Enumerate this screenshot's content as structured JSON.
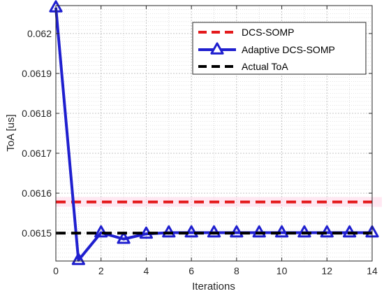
{
  "chart_data": {
    "type": "line",
    "xlabel": "Iterations",
    "ylabel": "ToA [us]",
    "xlim": [
      0,
      14
    ],
    "ylim": [
      0.06143,
      0.06207
    ],
    "grid": true,
    "legend_position": "top-right",
    "x_ticks": [
      0,
      2,
      4,
      6,
      8,
      10,
      12,
      14
    ],
    "y_ticks": [
      0.0615,
      0.0616,
      0.0617,
      0.0618,
      0.0619,
      0.062
    ],
    "y_tick_labels": [
      "0.0615",
      "0.0616",
      "0.0617",
      "0.0618",
      "0.0619",
      "0.062"
    ],
    "x": [
      0,
      1,
      2,
      3,
      4,
      5,
      6,
      7,
      8,
      9,
      10,
      11,
      12,
      13,
      14
    ],
    "series": [
      {
        "name": "DCS-SOMP",
        "color": "#e41a1c",
        "style": "dashed",
        "marker": "none",
        "values": [
          0.061578,
          0.061578,
          0.061578,
          0.061578,
          0.061578,
          0.061578,
          0.061578,
          0.061578,
          0.061578,
          0.061578,
          0.061578,
          0.061578,
          0.061578,
          0.061578,
          0.061578
        ]
      },
      {
        "name": "Adaptive DCS-SOMP",
        "color": "#1f1fcf",
        "style": "solid",
        "marker": "triangle",
        "values": [
          0.062065,
          0.061432,
          0.061501,
          0.061485,
          0.061498,
          0.061501,
          0.061501,
          0.061501,
          0.061501,
          0.061501,
          0.061501,
          0.061501,
          0.061501,
          0.061501,
          0.061501
        ]
      },
      {
        "name": "Actual ToA",
        "color": "#000000",
        "style": "dashed",
        "marker": "none",
        "values": [
          0.0615,
          0.0615,
          0.0615,
          0.0615,
          0.0615,
          0.0615,
          0.0615,
          0.0615,
          0.0615,
          0.0615,
          0.0615,
          0.0615,
          0.0615,
          0.0615,
          0.0615
        ]
      }
    ]
  }
}
